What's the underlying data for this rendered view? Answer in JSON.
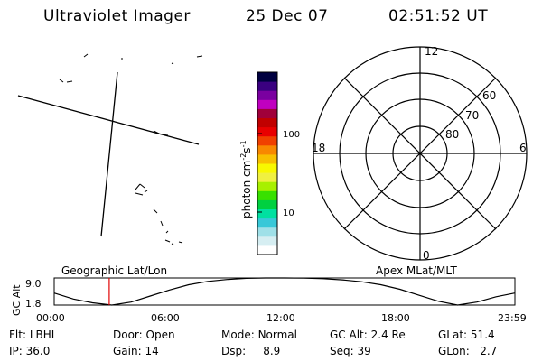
{
  "header": {
    "title": "Ultraviolet Imager",
    "date": "25 Dec 07",
    "time": "02:51:52 UT"
  },
  "left_panel": {
    "label": "Geographic Lat/Lon"
  },
  "right_panel": {
    "label": "Apex MLat/MLT"
  },
  "colorbar": {
    "label": "photon cm",
    "label_sup1": "-2",
    "label_mid": "s",
    "label_sup2": "-1",
    "ticks": [
      "100",
      "10"
    ],
    "colors": [
      "#ffffff",
      "#d6eef2",
      "#9fe0e8",
      "#38c8d8",
      "#00e0a0",
      "#00d040",
      "#38e000",
      "#a8f000",
      "#f0f040",
      "#f8f800",
      "#f8c000",
      "#f88800",
      "#f04000",
      "#e80000",
      "#c00000",
      "#a0003a",
      "#c000c0",
      "#7a00a0",
      "#3a0080",
      "#000040"
    ]
  },
  "polar": {
    "mlt_labels": [
      "12",
      "18",
      "6",
      "0"
    ],
    "mlat_labels": [
      "60",
      "70",
      "80"
    ]
  },
  "chart_data": {
    "type": "line",
    "title": "",
    "ylabel": "GC Alt",
    "yticks": [
      "9.0",
      "1.8"
    ],
    "ylim": [
      1.8,
      9.0
    ],
    "xticks": [
      "00:00",
      "06:00",
      "12:00",
      "18:00",
      "23:59"
    ],
    "x": [
      0,
      1,
      2,
      3,
      4,
      5,
      6,
      7,
      8,
      9,
      10,
      11,
      12,
      13,
      14,
      15,
      16,
      17,
      18,
      19,
      20,
      21,
      22,
      23,
      23.98
    ],
    "series": [
      {
        "values": [
          5.0,
          3.4,
          2.4,
          1.8,
          2.6,
          4.2,
          5.8,
          7.2,
          8.1,
          8.6,
          8.9,
          9.0,
          9.0,
          8.95,
          8.8,
          8.5,
          8.0,
          7.2,
          6.0,
          4.4,
          2.8,
          1.8,
          2.6,
          4.0,
          5.0
        ]
      }
    ],
    "current_time": 2.864
  },
  "info": {
    "flt_label": "Flt:",
    "flt": "LBHL",
    "door_label": "Door:",
    "door": "Open",
    "mode_label": "Mode:",
    "mode": "Normal",
    "gcalt_label": "GC Alt:",
    "gcalt": "2.4 Re",
    "glat_label": "GLat:",
    "glat": "51.4",
    "ip_label": "IP:",
    "ip": "36.0",
    "gain_label": "Gain:",
    "gain": "14",
    "dsp_label": "Dsp:",
    "dsp": "8.9",
    "seq_label": "Seq:",
    "seq": "39",
    "glon_label": "GLon:",
    "glon": "2.7"
  }
}
